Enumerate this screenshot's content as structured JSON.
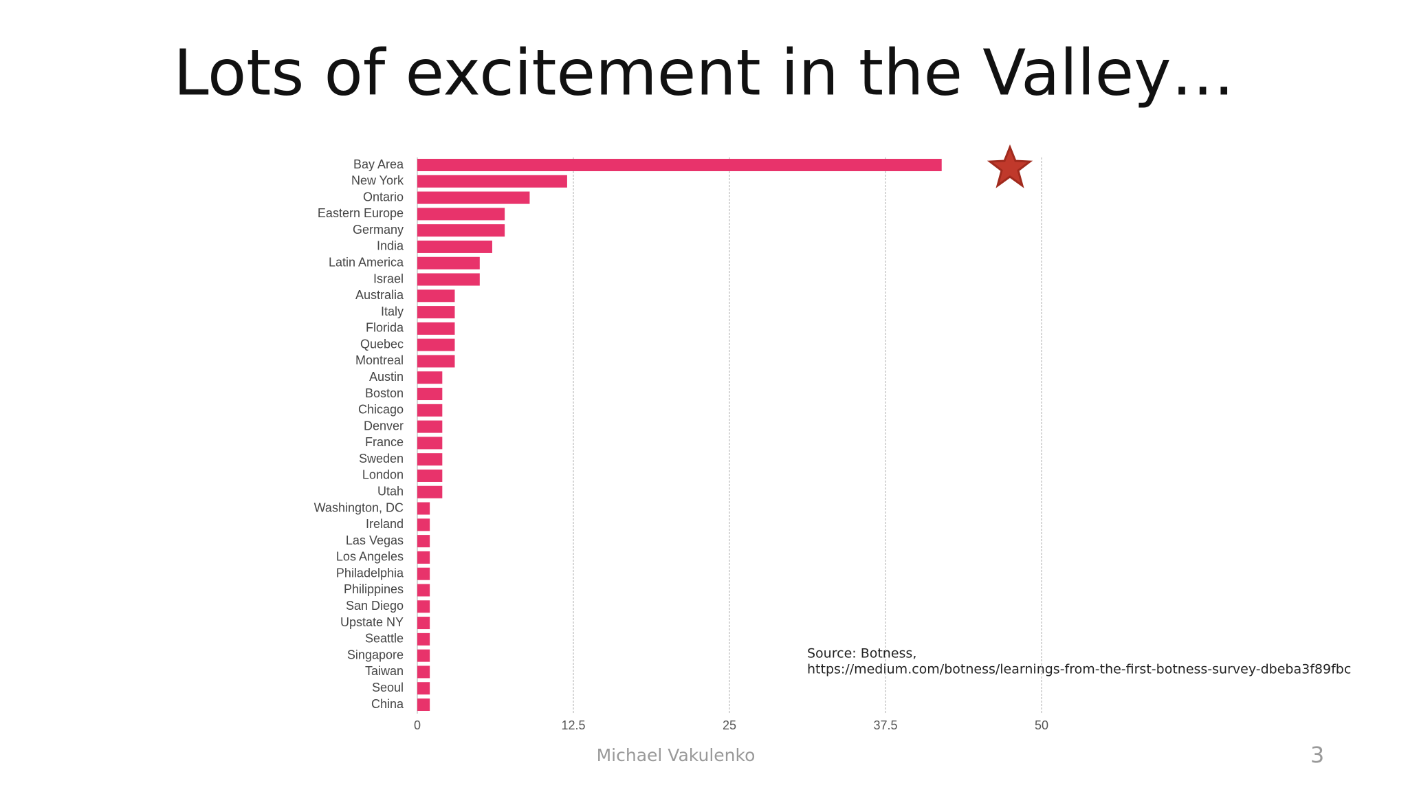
{
  "chart_data": {
    "type": "bar",
    "orientation": "horizontal",
    "title": "Lots of excitement in the Valley…",
    "categories": [
      "Bay Area",
      "New York",
      "Ontario",
      "Eastern Europe",
      "Germany",
      "India",
      "Latin America",
      "Israel",
      "Australia",
      "Italy",
      "Florida",
      "Quebec",
      "Montreal",
      "Austin",
      "Boston",
      "Chicago",
      "Denver",
      "France",
      "Sweden",
      "London",
      "Utah",
      "Washington, DC",
      "Ireland",
      "Las Vegas",
      "Los Angeles",
      "Philadelphia",
      "Philippines",
      "San Diego",
      "Upstate NY",
      "Seattle",
      "Singapore",
      "Taiwan",
      "Seoul",
      "China"
    ],
    "values": [
      42,
      12,
      9,
      7,
      7,
      6,
      5,
      5,
      3,
      3,
      3,
      3,
      3,
      2,
      2,
      2,
      2,
      2,
      2,
      2,
      2,
      1,
      1,
      1,
      1,
      1,
      1,
      1,
      1,
      1,
      1,
      1,
      1,
      1
    ],
    "color": "#e8336b",
    "xlim": [
      0,
      50
    ],
    "xticks": [
      0,
      12.5,
      25,
      37.5,
      50
    ],
    "grid": true,
    "source": [
      "Source: Botness,",
      "https://medium.com/botness/learnings-from-the-first-botness-survey-dbeba3f89fbc"
    ]
  },
  "footer": {
    "author": "Michael Vakulenko",
    "page_number": "3"
  }
}
